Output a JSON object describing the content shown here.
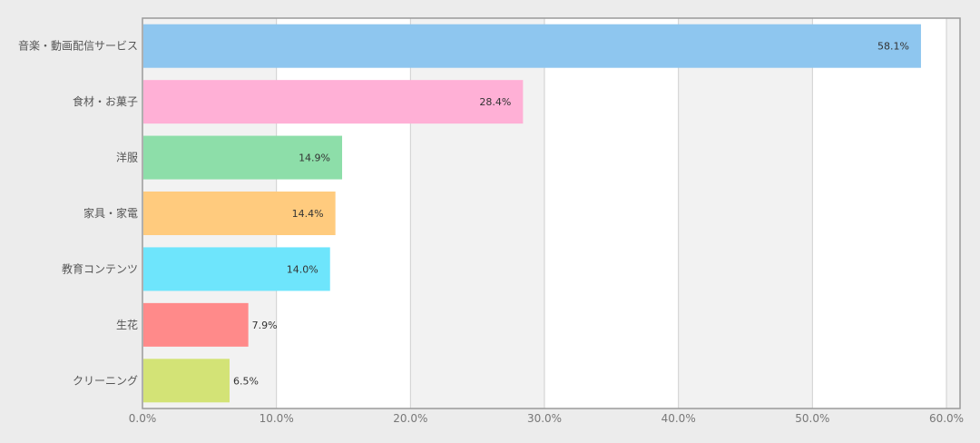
{
  "chart_data": {
    "type": "bar",
    "orientation": "horizontal",
    "categories": [
      "音楽・動画配信サービス",
      "食材・お菓子",
      "洋服",
      "家具・家電",
      "教育コンテンツ",
      "生花",
      "クリーニング"
    ],
    "values": [
      58.1,
      28.4,
      14.9,
      14.4,
      14.0,
      7.9,
      6.5
    ],
    "value_labels": [
      "58.1%",
      "28.4%",
      "14.9%",
      "14.4%",
      "14.0%",
      "7.9%",
      "6.5%"
    ],
    "bar_colors": [
      "#8ec6ef",
      "#ffb0d6",
      "#8ddea9",
      "#ffcb7e",
      "#6ee5fc",
      "#ff8a8a",
      "#d3e376"
    ],
    "xlim": [
      0,
      60
    ],
    "x_ticks": [
      0,
      10,
      20,
      30,
      40,
      50,
      60
    ],
    "x_tick_labels": [
      "0.0%",
      "10.0%",
      "20.0%",
      "30.0%",
      "40.0%",
      "50.0%",
      "60.0%"
    ],
    "grid": true,
    "legend": false,
    "title": "",
    "xlabel": "",
    "ylabel": ""
  }
}
